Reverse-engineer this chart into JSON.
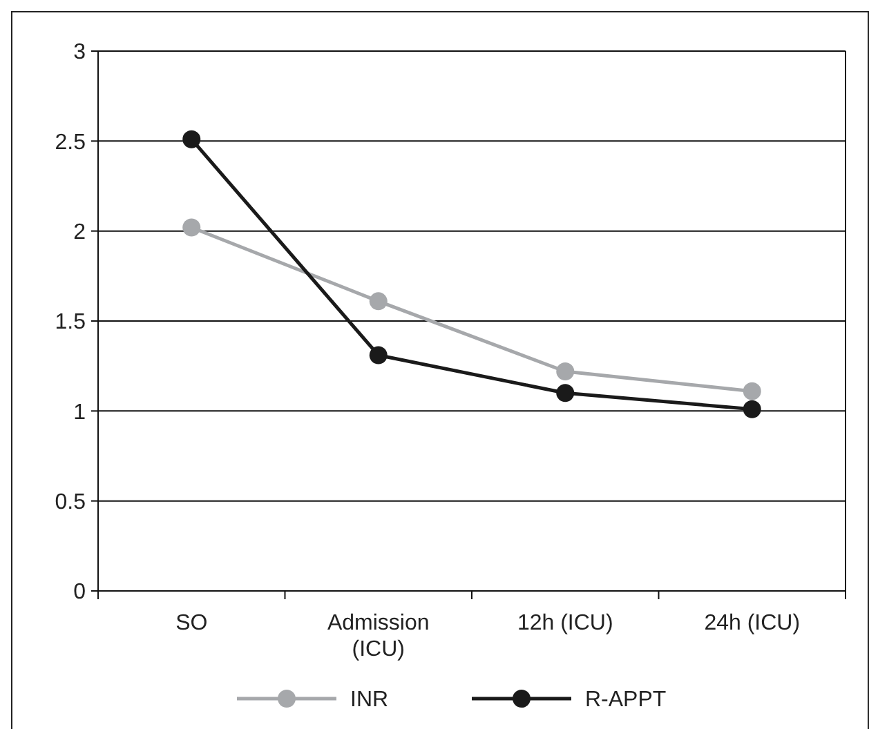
{
  "chart_data": {
    "type": "line",
    "categories": [
      "SO",
      "Admission (ICU)",
      "12h (ICU)",
      "24h (ICU)"
    ],
    "series": [
      {
        "name": "INR",
        "color": "#a6a8ab",
        "values": [
          2.02,
          1.61,
          1.22,
          1.11
        ]
      },
      {
        "name": "R-APPT",
        "color": "#1a1a1a",
        "values": [
          2.51,
          1.31,
          1.1,
          1.01
        ]
      }
    ],
    "ylim": [
      0,
      3
    ],
    "yticks": [
      0,
      0.5,
      1,
      1.5,
      2,
      2.5,
      3
    ],
    "grid": "y",
    "legend": "bottom",
    "marker": "circle",
    "line_style": "solid"
  }
}
